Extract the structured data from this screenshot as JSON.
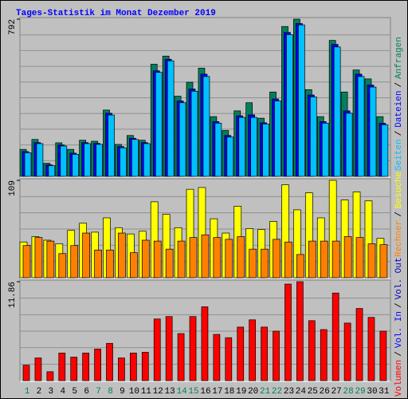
{
  "title": "Tages-Statistik im Monat Dezember 2019",
  "legend_separator": "/",
  "chart_data": [
    {
      "type": "bar",
      "ylim": [
        0,
        792
      ],
      "yticks": [
        792
      ],
      "series": [
        {
          "name": "Anfragen",
          "color": "#00805c",
          "values": [
            136,
            186,
            66,
            169,
            136,
            182,
            177,
            334,
            161,
            206,
            182,
            565,
            606,
            404,
            474,
            545,
            301,
            231,
            330,
            371,
            293,
            425,
            755,
            792,
            437,
            301,
            685,
            425,
            536,
            491,
            301
          ]
        },
        {
          "name": "Dateien",
          "color": "#0000ff",
          "values": [
            125,
            170,
            58,
            158,
            117,
            170,
            166,
            318,
            150,
            192,
            170,
            532,
            590,
            380,
            440,
            515,
            276,
            206,
            305,
            310,
            270,
            390,
            725,
            770,
            410,
            276,
            665,
            330,
            515,
            460,
            268
          ]
        },
        {
          "name": "Seiten",
          "color": "#00c0ff",
          "values": [
            119,
            165,
            54,
            153,
            111,
            165,
            161,
            309,
            144,
            186,
            165,
            524,
            582,
            371,
            429,
            503,
            268,
            198,
            297,
            297,
            264,
            380,
            714,
            763,
            400,
            268,
            652,
            318,
            503,
            450,
            260
          ]
        }
      ]
    },
    {
      "type": "bar",
      "ylim": [
        0,
        109
      ],
      "yticks": [
        109
      ],
      "series": [
        {
          "name": "Besuche",
          "color": "#ffff00",
          "values": [
            40,
            46,
            42,
            38,
            53,
            61,
            51,
            67,
            56,
            49,
            52,
            85,
            71,
            56,
            99,
            101,
            66,
            50,
            80,
            55,
            54,
            63,
            104,
            76,
            95,
            67,
            109,
            87,
            96,
            86,
            44
          ]
        },
        {
          "name": "Rechner",
          "color": "#ff8000",
          "values": [
            36,
            45,
            41,
            27,
            36,
            50,
            31,
            31,
            50,
            28,
            42,
            41,
            32,
            41,
            45,
            48,
            45,
            43,
            46,
            32,
            32,
            43,
            40,
            26,
            41,
            41,
            41,
            46,
            45,
            38,
            37
          ]
        }
      ]
    },
    {
      "type": "bar",
      "ylim": [
        0,
        11.86
      ],
      "yticks": [
        11.86
      ],
      "categories": [
        "1",
        "2",
        "3",
        "4",
        "5",
        "6",
        "7",
        "8",
        "9",
        "10",
        "11",
        "12",
        "13",
        "14",
        "15",
        "16",
        "17",
        "18",
        "19",
        "20",
        "21",
        "22",
        "23",
        "24",
        "25",
        "26",
        "27",
        "28",
        "29",
        "30",
        "31"
      ],
      "category_colors": [
        "#00805c",
        "#000000",
        "#000000",
        "#000000",
        "#000000",
        "#000000",
        "#00805c",
        "#00805c",
        "#000000",
        "#000000",
        "#000000",
        "#000000",
        "#000000",
        "#00805c",
        "#00805c",
        "#000000",
        "#000000",
        "#000000",
        "#000000",
        "#000000",
        "#00805c",
        "#00805c",
        "#000000",
        "#000000",
        "#000000",
        "#000000",
        "#000000",
        "#00805c",
        "#00805c",
        "#000000",
        "#000000"
      ],
      "series": [
        {
          "name": "Volumen",
          "color": "#ff0000",
          "values": [
            1.85,
            2.72,
            1.07,
            3.31,
            2.82,
            3.31,
            3.79,
            4.47,
            2.72,
            3.31,
            3.4,
            7.39,
            7.68,
            5.64,
            7.68,
            8.85,
            5.54,
            5.15,
            6.42,
            7.29,
            6.42,
            5.93,
            11.57,
            11.86,
            7.19,
            6.12,
            10.5,
            6.9,
            8.65,
            7.58,
            5.93
          ]
        },
        {
          "name": "Vol. In",
          "color": "#0000ff",
          "values": [
            null,
            null,
            null,
            null,
            null,
            null,
            null,
            null,
            null,
            null,
            null,
            null,
            null,
            null,
            null,
            null,
            null,
            null,
            null,
            null,
            null,
            null,
            null,
            null,
            null,
            null,
            null,
            null,
            null,
            null,
            null
          ]
        },
        {
          "name": "Vol. Out",
          "color": "#0000c0",
          "values": [
            null,
            null,
            null,
            null,
            null,
            null,
            null,
            null,
            null,
            null,
            null,
            null,
            null,
            null,
            null,
            null,
            null,
            null,
            null,
            null,
            null,
            null,
            null,
            null,
            null,
            null,
            null,
            null,
            null,
            null,
            null
          ]
        }
      ]
    }
  ]
}
